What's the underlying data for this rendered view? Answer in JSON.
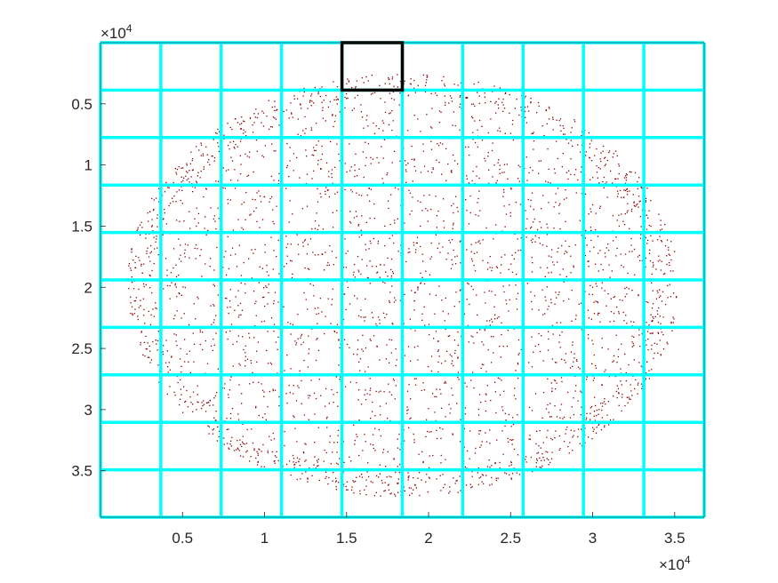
{
  "chart_data": {
    "type": "scatter",
    "title": "",
    "xlabel": "",
    "ylabel": "",
    "xlim": [
      0,
      36800
    ],
    "ylim": [
      0,
      38800
    ],
    "y_reversed": true,
    "x_ticks": [
      5000,
      10000,
      15000,
      20000,
      25000,
      30000,
      35000
    ],
    "x_tick_labels": [
      "0.5",
      "1",
      "1.5",
      "2",
      "2.5",
      "3",
      "3.5"
    ],
    "y_ticks": [
      5000,
      10000,
      15000,
      20000,
      25000,
      30000,
      35000
    ],
    "y_tick_labels": [
      "0.5",
      "1",
      "1.5",
      "2",
      "2.5",
      "3",
      "3.5"
    ],
    "x_exponent": {
      "base": "×10",
      "power": "4"
    },
    "y_exponent": {
      "base": "×10",
      "power": "4"
    },
    "grid": {
      "color": "#00FFFF",
      "x_lines": [
        0,
        3680,
        7360,
        11040,
        14720,
        18400,
        22080,
        25760,
        29440,
        33120,
        36800
      ],
      "y_lines": [
        0,
        3880,
        7760,
        11640,
        15520,
        19400,
        23280,
        27160,
        31040,
        34920,
        38800
      ]
    },
    "highlight_tile": {
      "x": [
        14720,
        18400
      ],
      "y": [
        0,
        3880
      ],
      "color": "#000000"
    },
    "scatter_color": "#8B0000",
    "cloud": {
      "center": [
        18400,
        19800
      ],
      "radius_x": 16800,
      "radius_y": 17300,
      "approx_points": 2600
    }
  }
}
